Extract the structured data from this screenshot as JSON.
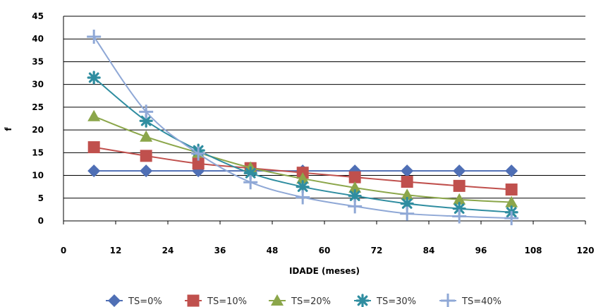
{
  "chart_data": {
    "type": "scatter",
    "title": "",
    "xlabel": "IDADE (meses)",
    "ylabel": "f",
    "xlim": [
      0,
      120
    ],
    "ylim": [
      0,
      45
    ],
    "xticks": [
      0,
      12,
      24,
      36,
      48,
      60,
      72,
      84,
      96,
      108,
      120
    ],
    "yticks": [
      0,
      5,
      10,
      15,
      20,
      25,
      30,
      35,
      40,
      45
    ],
    "grid": "horizontal",
    "legend": "bottom",
    "x": [
      7,
      19,
      31,
      43,
      55,
      67,
      79,
      91,
      103
    ],
    "series": [
      {
        "name": "TS=0%",
        "marker": "diamond",
        "color": "#4F6FB5",
        "values": [
          11.0,
          11.0,
          11.0,
          11.0,
          11.0,
          11.0,
          11.0,
          11.0,
          11.0
        ]
      },
      {
        "name": "TS=10%",
        "marker": "square",
        "color": "#C0504D",
        "values": [
          16.2,
          14.3,
          12.6,
          11.6,
          10.6,
          9.6,
          8.6,
          7.7,
          6.9
        ]
      },
      {
        "name": "TS=20%",
        "marker": "triangle",
        "color": "#8BA64A",
        "values": [
          23.0,
          18.5,
          15.0,
          11.7,
          9.3,
          7.3,
          5.7,
          4.7,
          4.1
        ]
      },
      {
        "name": "TS=30%",
        "marker": "asterisk",
        "color": "#2F8DA0",
        "values": [
          31.5,
          22.0,
          15.5,
          10.5,
          7.5,
          5.5,
          3.8,
          2.7,
          1.9
        ]
      },
      {
        "name": "TS=40%",
        "marker": "plus",
        "color": "#8FA8D6",
        "values": [
          40.5,
          24.0,
          14.8,
          8.5,
          5.2,
          3.2,
          1.6,
          1.0,
          0.6
        ]
      }
    ]
  }
}
